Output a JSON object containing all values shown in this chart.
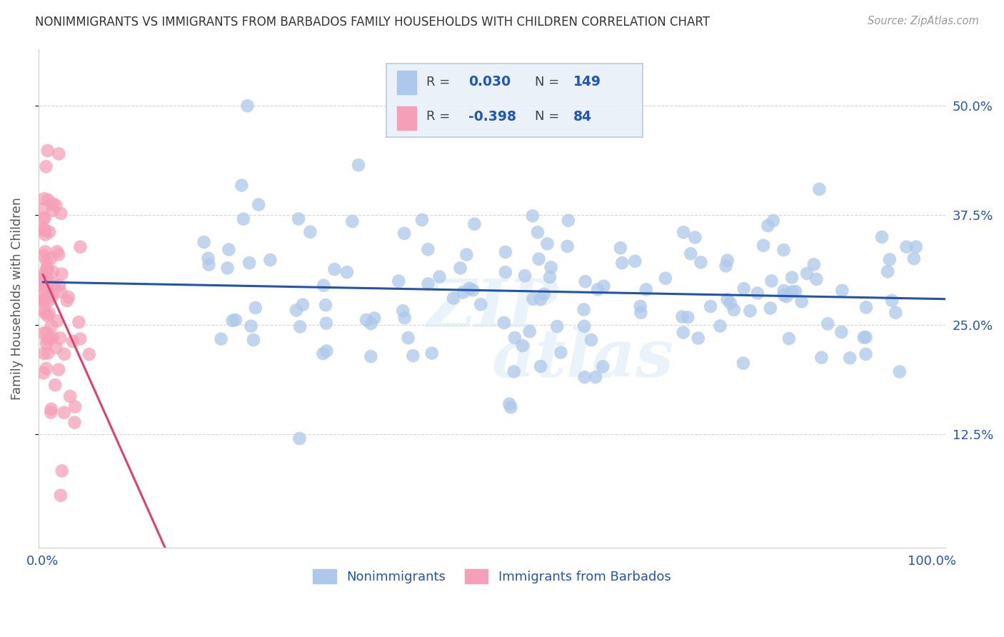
{
  "title": "NONIMMIGRANTS VS IMMIGRANTS FROM BARBADOS FAMILY HOUSEHOLDS WITH CHILDREN CORRELATION CHART",
  "source": "Source: ZipAtlas.com",
  "ylabel": "Family Households with Children",
  "xlim": [
    0.0,
    1.0
  ],
  "ylim": [
    0.0,
    0.56
  ],
  "xtick_labels": [
    "0.0%",
    "100.0%"
  ],
  "ytick_labels": [
    "12.5%",
    "25.0%",
    "37.5%",
    "50.0%"
  ],
  "ytick_values": [
    0.125,
    0.25,
    0.375,
    0.5
  ],
  "R_nonimm": 0.03,
  "N_nonimm": 149,
  "R_imm": -0.398,
  "N_imm": 84,
  "nonimm_color": "#adc8ea",
  "nonimm_line_color": "#2255aa",
  "imm_color": "#f5a0b8",
  "imm_line_color": "#e0406e",
  "background_color": "#ffffff",
  "grid_color": "#cccccc",
  "title_color": "#333333",
  "axis_label_color": "#555555",
  "tick_label_color": "#2255bb",
  "legend_text_color": "#2255bb",
  "watermark_color": "#d4e8f5",
  "legend_box_color": "#e8f0f8",
  "legend_border_color": "#bbccdd"
}
